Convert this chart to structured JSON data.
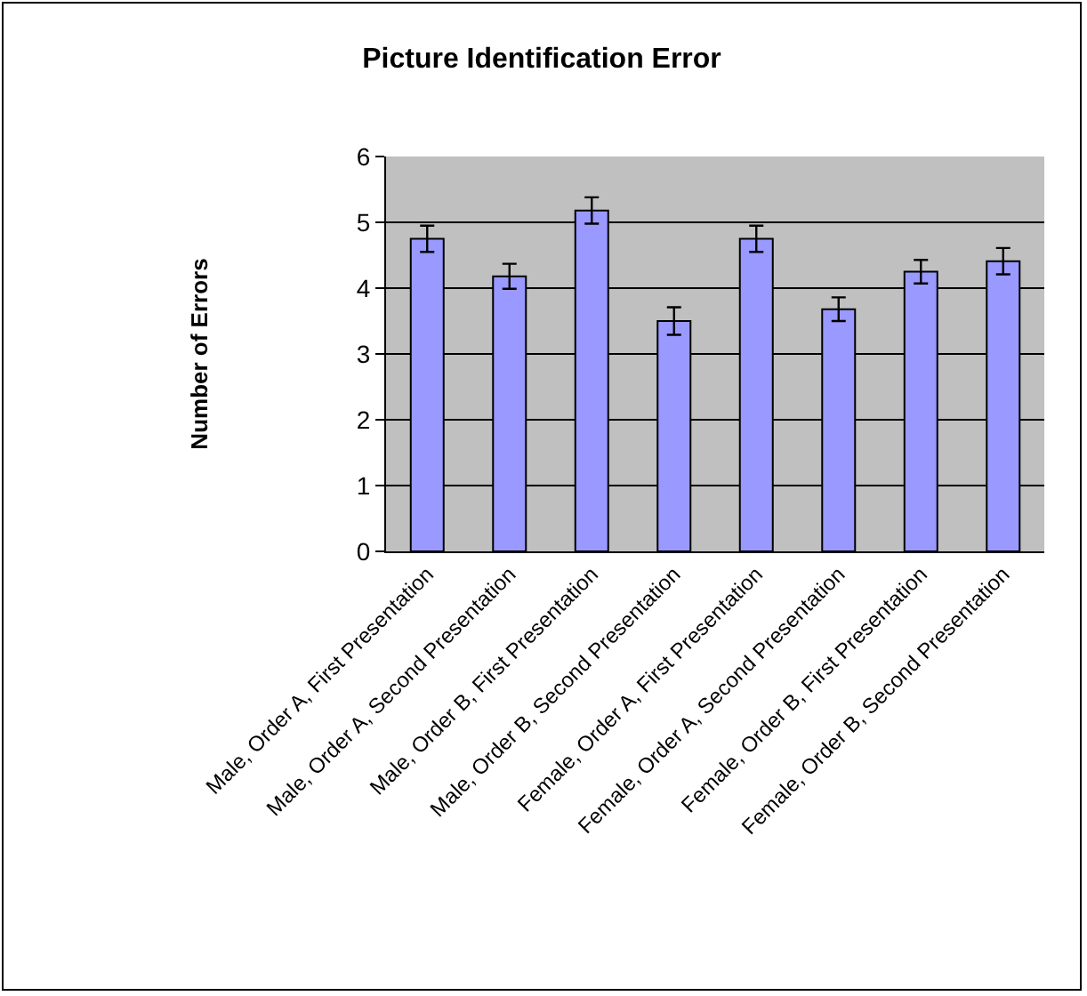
{
  "chart_data": {
    "type": "bar",
    "title": "Picture Identification Error",
    "ylabel": "Number of Errors",
    "categories": [
      "Male, Order A, First Presentation",
      "Male, Order A, Second Presentation",
      "Male, Order B, First Presentation",
      "Male, Order B, Second Presentation",
      "Female, Order A, First Presentation",
      "Female, Order A, Second Presentation",
      "Female, Order B, First Presentation",
      "Female, Order B, Second Presentation"
    ],
    "values": [
      4.75,
      4.18,
      5.18,
      3.5,
      4.75,
      3.68,
      4.25,
      4.41
    ],
    "errors": [
      0.2,
      0.19,
      0.2,
      0.21,
      0.2,
      0.18,
      0.18,
      0.2
    ],
    "color": "#9999ff",
    "ylim": [
      0,
      6
    ],
    "yticks": [
      0,
      1,
      2,
      3,
      4,
      5,
      6
    ],
    "grid": "y",
    "legend": false
  }
}
